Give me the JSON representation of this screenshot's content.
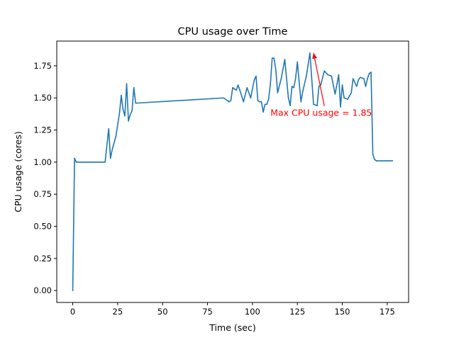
{
  "chart_data": {
    "type": "line",
    "title": "CPU usage over Time",
    "xlabel": "Time (sec)",
    "ylabel": "CPU usage (cores)",
    "xlim": [
      -8.9,
      186.9
    ],
    "ylim": [
      -0.0925,
      1.9425
    ],
    "x_ticks": [
      0,
      25,
      50,
      75,
      100,
      125,
      150,
      175
    ],
    "y_ticks": [
      0.0,
      0.25,
      0.5,
      0.75,
      1.0,
      1.25,
      1.5,
      1.75
    ],
    "x_tick_labels": [
      "0",
      "25",
      "50",
      "75",
      "100",
      "125",
      "150",
      "175"
    ],
    "y_tick_labels": [
      "0.00",
      "0.25",
      "0.50",
      "0.75",
      "1.00",
      "1.25",
      "1.50",
      "1.75"
    ],
    "grid": false,
    "series": [
      {
        "color": "#1f77b4",
        "x": [
          0,
          1,
          2,
          4,
          6,
          8,
          10,
          12,
          14,
          16,
          18,
          20,
          21,
          22,
          24,
          26,
          27,
          28,
          29,
          30,
          31,
          32,
          33,
          34,
          35,
          36,
          84,
          86,
          87,
          88,
          89,
          90,
          91,
          92,
          93,
          95,
          97,
          99,
          101,
          102,
          103,
          104,
          105,
          106,
          107,
          108,
          109,
          110,
          111,
          112,
          113,
          114,
          116,
          118,
          120,
          121,
          122,
          123,
          124,
          125,
          127,
          128,
          130,
          132,
          134,
          136,
          137,
          138,
          140,
          142,
          144,
          146,
          148,
          149,
          150,
          151,
          153,
          155,
          156,
          158,
          159,
          160,
          162,
          163,
          164,
          165,
          166,
          167,
          168,
          169,
          172,
          174,
          175,
          176,
          178
        ],
        "y": [
          0.0,
          1.03,
          1.0,
          1.0,
          1.0,
          1.0,
          1.0,
          1.0,
          1.0,
          1.0,
          1.0,
          1.26,
          1.03,
          1.1,
          1.2,
          1.38,
          1.52,
          1.41,
          1.36,
          1.61,
          1.32,
          1.37,
          1.4,
          1.58,
          1.46,
          1.46,
          1.5,
          1.48,
          1.47,
          1.48,
          1.58,
          1.57,
          1.56,
          1.6,
          1.56,
          1.47,
          1.58,
          1.5,
          1.64,
          1.67,
          1.48,
          1.47,
          1.47,
          1.39,
          1.45,
          1.45,
          1.49,
          1.61,
          1.81,
          1.81,
          1.72,
          1.54,
          1.65,
          1.8,
          1.5,
          1.44,
          1.59,
          1.58,
          1.65,
          1.78,
          1.47,
          1.55,
          1.67,
          1.85,
          1.45,
          1.44,
          1.59,
          1.6,
          1.71,
          1.68,
          1.67,
          1.53,
          1.68,
          1.43,
          1.6,
          1.5,
          1.49,
          1.54,
          1.65,
          1.59,
          1.64,
          1.66,
          1.65,
          1.59,
          1.65,
          1.69,
          1.7,
          1.06,
          1.02,
          1.01,
          1.01,
          1.01,
          1.01,
          1.01,
          1.01
        ]
      }
    ],
    "annotation": {
      "text": "Max CPU usage = 1.85",
      "color": "#ff0000",
      "xy": [
        134,
        1.85
      ],
      "xytext": [
        110,
        1.36
      ]
    }
  }
}
